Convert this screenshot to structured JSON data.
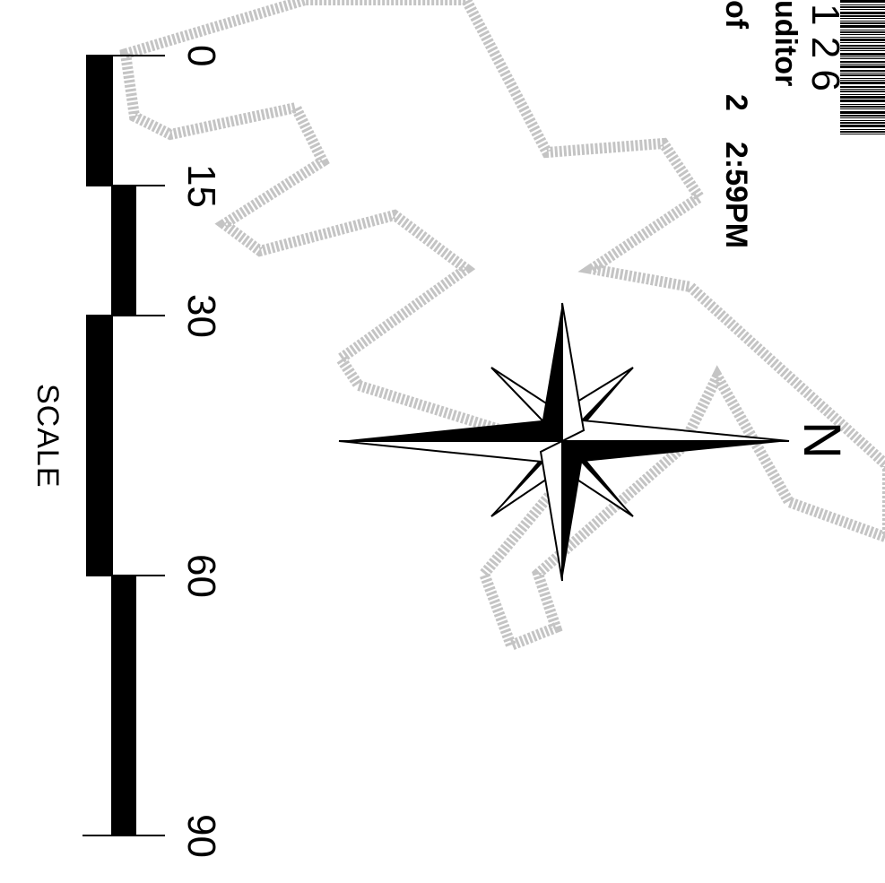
{
  "watermark": {
    "letter": "N",
    "color": "#b8b8b8"
  },
  "stamp": {
    "barcode_number": "1 2 6",
    "office_label": "uditor",
    "page_of_text": "of",
    "page_total": "2",
    "time_text": "2:59PM"
  },
  "compass": {
    "north_label": "N",
    "ink": "#000000"
  },
  "scale": {
    "title": "SCALE",
    "ticks": [
      {
        "value": 0,
        "label": "0"
      },
      {
        "value": 15,
        "label": "15"
      },
      {
        "value": 30,
        "label": "30"
      },
      {
        "value": 60,
        "label": "60"
      },
      {
        "value": 90,
        "label": "90"
      }
    ],
    "max": 90
  }
}
